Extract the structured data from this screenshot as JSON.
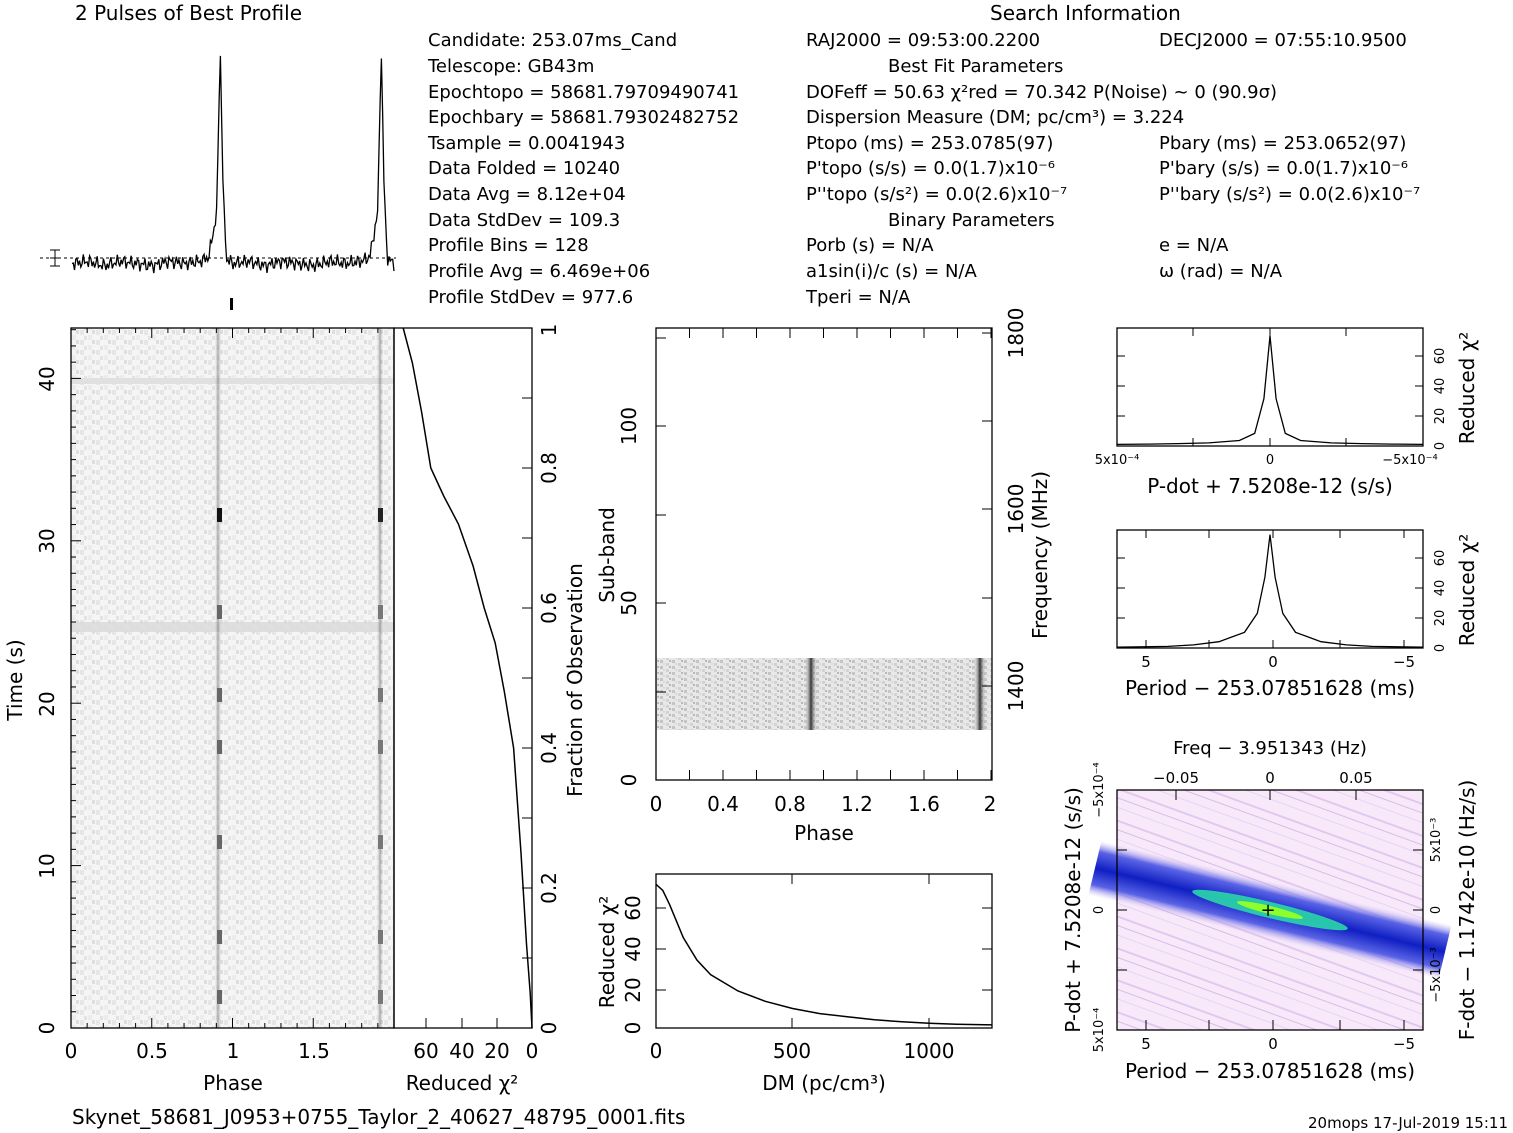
{
  "title": "2 Pulses of Best Profile",
  "search_title": "Search Information",
  "footer_file": "Skynet_58681_J0953+0755_Taylor_2_40627_48795_0001.fits",
  "footer_stamp": "20mops 17-Jul-2019 15:11",
  "info": {
    "col1": [
      "Candidate:  253.07ms_Cand",
      "Telescope:  GB43m",
      "Epochtopo = 58681.79709490741",
      "Epochbary = 58681.79302482752",
      "Tsample       =  0.0041943",
      "Data Folded    =  10240",
      "Data Avg       =  8.12e+04",
      "Data StdDev    =  109.3",
      "Profile Bins   =  128",
      "Profile Avg    =  6.469e+06",
      "Profile StdDev =  977.6"
    ],
    "col2": [
      "RAJ2000 = 09:53:00.2200",
      "Best Fit Parameters",
      "DOFeff = 50.63  χ²red = 70.342  P(Noise) ~ 0   (90.9σ)",
      "Dispersion Measure (DM; pc/cm³) = 3.224",
      "Ptopo (ms) =  253.0785(97)",
      "P'topo (s/s) = 0.0(1.7)x10⁻⁶",
      "P''topo (s/s²) = 0.0(2.6)x10⁻⁷",
      "Binary Parameters",
      "Porb (s) = N/A",
      "a1sin(i)/c (s) = N/A",
      "Tperi = N/A"
    ],
    "col3": [
      "DECJ2000 = 07:55:10.9500",
      "Pbary (ms) =  253.0652(97)",
      "P'bary (s/s) = 0.0(1.7)x10⁻⁶",
      "P''bary (s/s²) = 0.0(2.6)x10⁻⁷",
      "e = N/A",
      "ω (rad) = N/A"
    ]
  },
  "panels": {
    "time_phase": {
      "xlabel": "Phase",
      "ylabel": "Time (s)",
      "xticks": [
        "0",
        "0.5",
        "1",
        "1.5"
      ],
      "yticks": [
        "0",
        "10",
        "20",
        "30",
        "40"
      ],
      "xlim": [
        0,
        2
      ],
      "ylim": [
        0,
        43.5
      ]
    },
    "time_chi2": {
      "xlabel": "Reduced χ²",
      "ylabel": "Fraction of Observation",
      "xticks": [
        "60",
        "40",
        "20",
        "0"
      ],
      "yticks": [
        "0",
        "0.2",
        "0.4",
        "0.6",
        "0.8",
        "1"
      ]
    },
    "subband": {
      "xlabel": "Phase",
      "ylabel": "Sub-band",
      "y2label": "Frequency (MHz)",
      "xticks": [
        "0",
        "0.4",
        "0.8",
        "1.2",
        "1.6",
        "2"
      ],
      "yticks": [
        "0",
        "50",
        "100"
      ],
      "y2ticks": [
        "1400",
        "1600",
        "1800"
      ]
    },
    "dm": {
      "xlabel": "DM (pc/cm³)",
      "ylabel": "Reduced χ²",
      "xticks": [
        "0",
        "500",
        "1000"
      ],
      "yticks": [
        "0",
        "20",
        "40",
        "60"
      ]
    },
    "pdot": {
      "xlabel": "P-dot + 7.5208e-12 (s/s)",
      "ylabel": "Reduced χ²",
      "xticks": [
        "5x10⁻⁴",
        "0",
        "−5x10⁻⁴"
      ],
      "yticks": [
        "0",
        "20",
        "40",
        "60"
      ]
    },
    "period": {
      "xlabel": "Period − 253.07851628 (ms)",
      "ylabel": "Reduced χ²",
      "xticks": [
        "5",
        "0",
        "−5"
      ],
      "yticks": [
        "0",
        "20",
        "40",
        "60"
      ]
    },
    "pp_plane": {
      "title": "Freq − 3.951343 (Hz)",
      "xlabel": "Period − 253.07851628 (ms)",
      "ylabel": "P-dot + 7.5208e-12 (s/s)",
      "y2label": "F-dot − 1.1742e-10 (Hz/s)",
      "xticks": [
        "5",
        "0",
        "−5"
      ],
      "topticks": [
        "−0.05",
        "0",
        "0.05"
      ],
      "yticks": [
        "5x10⁻⁴",
        "0",
        "−5x10⁻⁴"
      ],
      "y2ticks": [
        "−5x10⁻³",
        "0",
        "5x10⁻³"
      ]
    }
  },
  "chart_data": [
    {
      "type": "line",
      "title": "2 Pulses of Best Profile",
      "x": [
        0,
        0.1,
        0.2,
        0.3,
        0.4,
        0.5,
        0.6,
        0.7,
        0.8,
        0.85,
        0.9,
        0.92,
        0.94,
        0.96,
        1.0,
        1.1,
        1.2,
        1.3,
        1.4,
        1.5,
        1.6,
        1.7,
        1.8,
        1.85,
        1.9,
        1.92,
        1.94,
        1.96,
        2.0
      ],
      "y": [
        0.02,
        0.03,
        0.01,
        0.03,
        0.02,
        0.01,
        0.03,
        0.02,
        0.03,
        0.05,
        0.25,
        1.0,
        0.3,
        0.04,
        0.02,
        0.03,
        0.01,
        0.03,
        0.02,
        0.01,
        0.03,
        0.02,
        0.03,
        0.05,
        0.25,
        1.0,
        0.3,
        0.04,
        0.02
      ],
      "xlim": [
        0,
        2
      ]
    },
    {
      "type": "line",
      "xlabel": "DM (pc/cm³)",
      "ylabel": "Reduced χ²",
      "x": [
        0,
        25,
        50,
        100,
        150,
        200,
        300,
        400,
        500,
        600,
        700,
        800,
        900,
        1000,
        1100,
        1230
      ],
      "y": [
        70,
        67,
        60,
        44,
        33,
        26,
        18,
        13,
        9.5,
        7,
        5.5,
        4,
        3,
        2.3,
        1.8,
        1.5
      ],
      "xlim": [
        0,
        1230
      ],
      "ylim": [
        0,
        75
      ]
    },
    {
      "type": "line",
      "xlabel": "P-dot + 7.5208e-12 (s/s)",
      "ylabel": "Reduced χ²",
      "x": [
        0.0005,
        0.0004,
        0.0003,
        0.0002,
        0.0001,
        5e-05,
        2e-05,
        0,
        -2e-05,
        -5e-05,
        -0.0001,
        -0.0002,
        -0.0003,
        -0.0004,
        -0.0005
      ],
      "y": [
        1,
        1.2,
        1.5,
        2,
        3.5,
        8,
        30,
        70,
        30,
        8,
        3.5,
        2,
        1.5,
        1.2,
        1
      ],
      "ylim": [
        0,
        75
      ]
    },
    {
      "type": "line",
      "xlabel": "Period − 253.07851628 (ms)",
      "ylabel": "Reduced χ²",
      "x": [
        6,
        4,
        3,
        2,
        1,
        0.5,
        0.2,
        0,
        -0.2,
        -0.5,
        -1,
        -2,
        -3,
        -4,
        -6
      ],
      "y": [
        0.5,
        1,
        2,
        4,
        10,
        22,
        45,
        72,
        45,
        22,
        10,
        4,
        2,
        1,
        0.5
      ],
      "ylim": [
        0,
        75
      ]
    },
    {
      "type": "line",
      "xlabel": "Reduced χ²",
      "ylabel": "Fraction of Observation",
      "x": [
        0,
        1,
        3,
        6,
        10,
        15,
        20,
        26,
        32,
        40,
        48,
        55,
        60,
        65,
        70
      ],
      "y": [
        0,
        0.05,
        0.12,
        0.25,
        0.4,
        0.48,
        0.55,
        0.6,
        0.66,
        0.72,
        0.76,
        0.8,
        0.88,
        0.95,
        1.0
      ],
      "xlim": [
        75,
        0
      ],
      "ylim": [
        0,
        1
      ]
    }
  ],
  "colors": {
    "plane_background": "#f4e6f8",
    "plane_band_outer": "#1f2fcf",
    "plane_band_inner": "#2ad7a8",
    "plane_peak": "#8fff2a",
    "image_noise": "#e2e2e2",
    "pulse_dark": "#111111"
  }
}
